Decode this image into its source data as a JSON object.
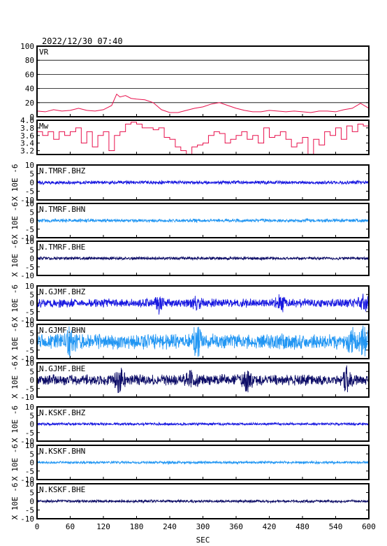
{
  "header": {
    "timestamp": "2022/12/30 07:40"
  },
  "colors": {
    "vr_line": "#e8104c",
    "mw_line": "#e8104c",
    "bhz": "#1818e0",
    "bhn": "#2196f3",
    "bhe": "#0c0c66",
    "frame": "#000000",
    "grid": "#000000"
  },
  "chart_data": [
    {
      "type": "line",
      "panel": "vr",
      "label": "VR",
      "ylim": [
        0,
        100
      ],
      "yticks": [
        "100",
        "80",
        "60",
        "40",
        "20",
        "0"
      ],
      "grid": true,
      "x": [
        0,
        15,
        30,
        45,
        60,
        75,
        90,
        105,
        120,
        135,
        144,
        150,
        160,
        170,
        180,
        195,
        210,
        225,
        240,
        255,
        270,
        285,
        300,
        315,
        330,
        345,
        360,
        375,
        390,
        405,
        420,
        435,
        450,
        465,
        480,
        495,
        510,
        525,
        540,
        555,
        570,
        585,
        600
      ],
      "values": [
        8,
        7,
        10,
        8,
        9,
        12,
        9,
        8,
        10,
        16,
        32,
        28,
        30,
        26,
        25,
        24,
        20,
        10,
        6,
        6,
        9,
        12,
        14,
        18,
        20,
        16,
        12,
        9,
        7,
        7,
        9,
        8,
        7,
        8,
        7,
        6,
        8,
        8,
        7,
        10,
        12,
        19,
        12
      ]
    },
    {
      "type": "line",
      "panel": "mw",
      "label": "Mw",
      "ylim": [
        3.1,
        4.0
      ],
      "yticks": [
        "4.0",
        "3.8",
        "3.6",
        "3.4",
        "3.2"
      ],
      "grid": false,
      "x": [
        0,
        10,
        20,
        30,
        40,
        50,
        60,
        70,
        80,
        90,
        100,
        110,
        120,
        130,
        140,
        150,
        160,
        170,
        180,
        190,
        200,
        210,
        220,
        230,
        240,
        250,
        260,
        270,
        280,
        290,
        300,
        310,
        320,
        330,
        340,
        350,
        360,
        370,
        380,
        390,
        400,
        410,
        420,
        430,
        440,
        450,
        460,
        470,
        480,
        490,
        500,
        510,
        520,
        530,
        540,
        550,
        560,
        570,
        580,
        590,
        600
      ],
      "values": [
        3.7,
        3.6,
        3.7,
        3.5,
        3.7,
        3.6,
        3.7,
        3.8,
        3.4,
        3.7,
        3.3,
        3.6,
        3.7,
        3.2,
        3.6,
        3.7,
        3.9,
        3.95,
        3.9,
        3.8,
        3.8,
        3.75,
        3.8,
        3.55,
        3.5,
        3.3,
        3.2,
        3.1,
        3.3,
        3.35,
        3.4,
        3.6,
        3.7,
        3.65,
        3.4,
        3.5,
        3.6,
        3.7,
        3.5,
        3.6,
        3.4,
        3.8,
        3.55,
        3.6,
        3.7,
        3.5,
        3.3,
        3.4,
        3.55,
        3.1,
        3.5,
        3.35,
        3.7,
        3.6,
        3.8,
        3.5,
        3.85,
        3.7,
        3.9,
        3.85,
        3.8
      ]
    },
    {
      "type": "line",
      "panel": "waveform",
      "label": "N.TMRF.BHZ",
      "component": "bhz",
      "ylabel": "X 10E -6",
      "ylim": [
        -10,
        10
      ],
      "yticks": [
        "10",
        "5",
        "0",
        "-5",
        "-10"
      ],
      "amplitude_typical": 0.8,
      "amplitude_max": 1.2,
      "bursts_sec": []
    },
    {
      "type": "line",
      "panel": "waveform",
      "label": "N.TMRF.BHN",
      "component": "bhn",
      "ylabel": "X 10E -6",
      "ylim": [
        -10,
        10
      ],
      "yticks": [
        "10",
        "5",
        "0",
        "-5",
        "-10"
      ],
      "amplitude_typical": 0.8,
      "amplitude_max": 1.2,
      "bursts_sec": []
    },
    {
      "type": "line",
      "panel": "waveform",
      "label": "N.TMRF.BHE",
      "component": "bhe",
      "ylabel": "X 10E -6",
      "ylim": [
        -10,
        10
      ],
      "yticks": [
        "10",
        "5",
        "0",
        "-5",
        "-10"
      ],
      "amplitude_typical": 0.7,
      "amplitude_max": 1.2,
      "bursts_sec": []
    },
    {
      "type": "line",
      "panel": "waveform",
      "label": "N.GJMF.BHZ",
      "component": "bhz",
      "ylabel": "X 10E -6",
      "ylim": [
        -10,
        10
      ],
      "yticks": [
        "10",
        "5",
        "0",
        "-5",
        "-10"
      ],
      "amplitude_typical": 2.0,
      "amplitude_max": 5.0,
      "bursts_sec": [
        220,
        290,
        440,
        590
      ]
    },
    {
      "type": "line",
      "panel": "waveform",
      "label": "N.GJMF.BHN",
      "component": "bhn",
      "ylabel": "X 10E -6",
      "ylim": [
        -10,
        10
      ],
      "yticks": [
        "10",
        "5",
        "0",
        "-5",
        "-10"
      ],
      "amplitude_typical": 3.5,
      "amplitude_max": 9.0,
      "bursts_sec": [
        60,
        290,
        570,
        590
      ]
    },
    {
      "type": "line",
      "panel": "waveform",
      "label": "N.GJMF.BHE",
      "component": "bhe",
      "ylabel": "X 10E -6",
      "ylim": [
        -10,
        10
      ],
      "yticks": [
        "10",
        "5",
        "0",
        "-5",
        "-10"
      ],
      "amplitude_typical": 2.5,
      "amplitude_max": 7.0,
      "bursts_sec": [
        150,
        280,
        380,
        560
      ]
    },
    {
      "type": "line",
      "panel": "waveform",
      "label": "N.KSKF.BHZ",
      "component": "bhz",
      "ylabel": "X 10E -6",
      "ylim": [
        -10,
        10
      ],
      "yticks": [
        "10",
        "5",
        "0",
        "-5",
        "-10"
      ],
      "amplitude_typical": 0.6,
      "amplitude_max": 1.0,
      "bursts_sec": []
    },
    {
      "type": "line",
      "panel": "waveform",
      "label": "N.KSKF.BHN",
      "component": "bhn",
      "ylabel": "X 10E -6",
      "ylim": [
        -10,
        10
      ],
      "yticks": [
        "10",
        "5",
        "0",
        "-5",
        "-10"
      ],
      "amplitude_typical": 0.6,
      "amplitude_max": 1.2,
      "bursts_sec": [
        240
      ]
    },
    {
      "type": "line",
      "panel": "waveform",
      "label": "N.KSKF.BHE",
      "component": "bhe",
      "ylabel": "X 10E -6",
      "ylim": [
        -10,
        10
      ],
      "yticks": [
        "10",
        "5",
        "0",
        "-5",
        "-10"
      ],
      "amplitude_typical": 0.6,
      "amplitude_max": 1.0,
      "bursts_sec": []
    }
  ],
  "x_axis": {
    "xlim": [
      0,
      600
    ],
    "ticks": [
      "0",
      "60",
      "120",
      "180",
      "240",
      "300",
      "360",
      "420",
      "480",
      "540",
      "600"
    ],
    "xlabel": "SEC"
  }
}
